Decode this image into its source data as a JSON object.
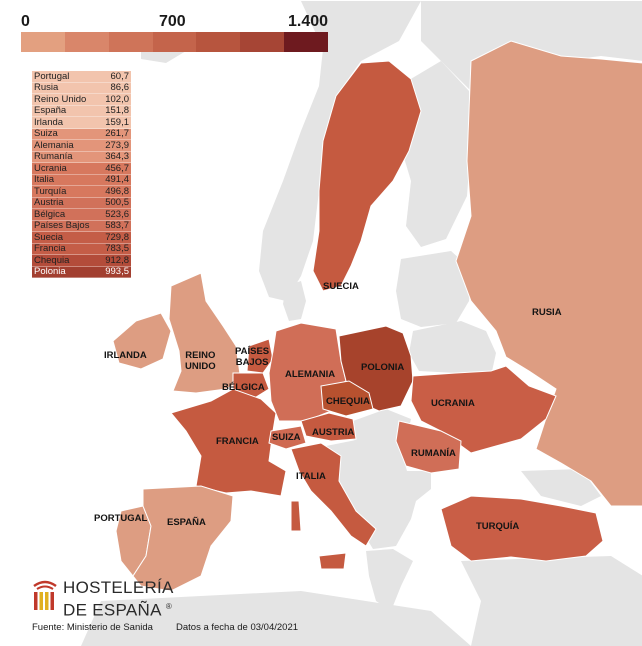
{
  "scale": {
    "min_label": "0",
    "mid_label": "700",
    "max_label": "1.400",
    "colors": [
      "#e3a080",
      "#d9866a",
      "#cf7459",
      "#c4644b",
      "#b7553e",
      "#a64535",
      "#6e1a1f"
    ]
  },
  "colors": {
    "land_nodata": "#e4e4e4",
    "sea": "#ffffff",
    "table_bg": "#f2c4ad"
  },
  "ranking": [
    {
      "country": "Portugal",
      "value": "60,7",
      "color": "#f2c4ad"
    },
    {
      "country": "Rusia",
      "value": "86,6",
      "color": "#f2c4ad"
    },
    {
      "country": "Reino Unido",
      "value": "102,0",
      "color": "#f2c4ad"
    },
    {
      "country": "España",
      "value": "151,8",
      "color": "#f2c4ad"
    },
    {
      "country": "Irlanda",
      "value": "159,1",
      "color": "#f2c4ad"
    },
    {
      "country": "Suiza",
      "value": "261,7",
      "color": "#e3957a"
    },
    {
      "country": "Alemania",
      "value": "273,9",
      "color": "#e3957a"
    },
    {
      "country": "Rumanía",
      "value": "364,3",
      "color": "#e3957a"
    },
    {
      "country": "Ucrania",
      "value": "456,7",
      "color": "#d7785e"
    },
    {
      "country": "Italia",
      "value": "491,4",
      "color": "#d7785e"
    },
    {
      "country": "Turquía",
      "value": "496,8",
      "color": "#d7785e"
    },
    {
      "country": "Austria",
      "value": "500,5",
      "color": "#d1715a"
    },
    {
      "country": "Bélgica",
      "value": "523,6",
      "color": "#d1715a"
    },
    {
      "country": "Países Bajos",
      "value": "583,7",
      "color": "#d1715a"
    },
    {
      "country": "Suecia",
      "value": "729,8",
      "color": "#c45d47"
    },
    {
      "country": "Francia",
      "value": "783,5",
      "color": "#c45d47"
    },
    {
      "country": "Chequia",
      "value": "912,8",
      "color": "#b34c3a"
    },
    {
      "country": "Polonia",
      "value": "993,5",
      "color": "#a23f30",
      "highlight": true
    }
  ],
  "map_labels": {
    "irlanda": "IRLANDA",
    "reino_unido": [
      "REINO",
      "UNIDO"
    ],
    "paises_bajos": [
      "PAÍSES",
      "BAJOS"
    ],
    "belgica": "BÉLGICA",
    "alemania": "ALEMANIA",
    "polonia": "POLONIA",
    "chequia": "CHEQUIA",
    "austria": "AUSTRIA",
    "suiza": "SUIZA",
    "francia": "FRANCIA",
    "italia": "ITALIA",
    "portugal": "PORTUGAL",
    "espana": "ESPAÑA",
    "suecia": "SUECIA",
    "rusia": "RUSIA",
    "ucrania": "UCRANIA",
    "rumania": "RUMANÍA",
    "turquia": "TURQUÍA"
  },
  "country_fills": {
    "portugal": "#dd9d82",
    "espana": "#dd9d82",
    "francia": "#c55a40",
    "reino_unido": "#dd9d82",
    "irlanda": "#dd9d82",
    "belgica": "#c55a40",
    "paises_bajos": "#c55a40",
    "alemania": "#d06e57",
    "suiza": "#cf6a52",
    "austria": "#c55a40",
    "chequia": "#b7512f",
    "polonia": "#a7432c",
    "italia": "#c55a40",
    "suecia": "#c55a40",
    "rusia": "#dd9d82",
    "ucrania": "#c95e46",
    "rumania": "#d06e57",
    "turquia": "#c95e46"
  },
  "logo": {
    "line1": "HOSTELERÍA",
    "line2": "DE ESPAÑA",
    "registered": "®",
    "colors": [
      "#c0392b",
      "#e0b020"
    ]
  },
  "footer": {
    "source": "Fuente: Ministerio de Sanida",
    "date": "Datos a fecha de 03/04/2021"
  }
}
